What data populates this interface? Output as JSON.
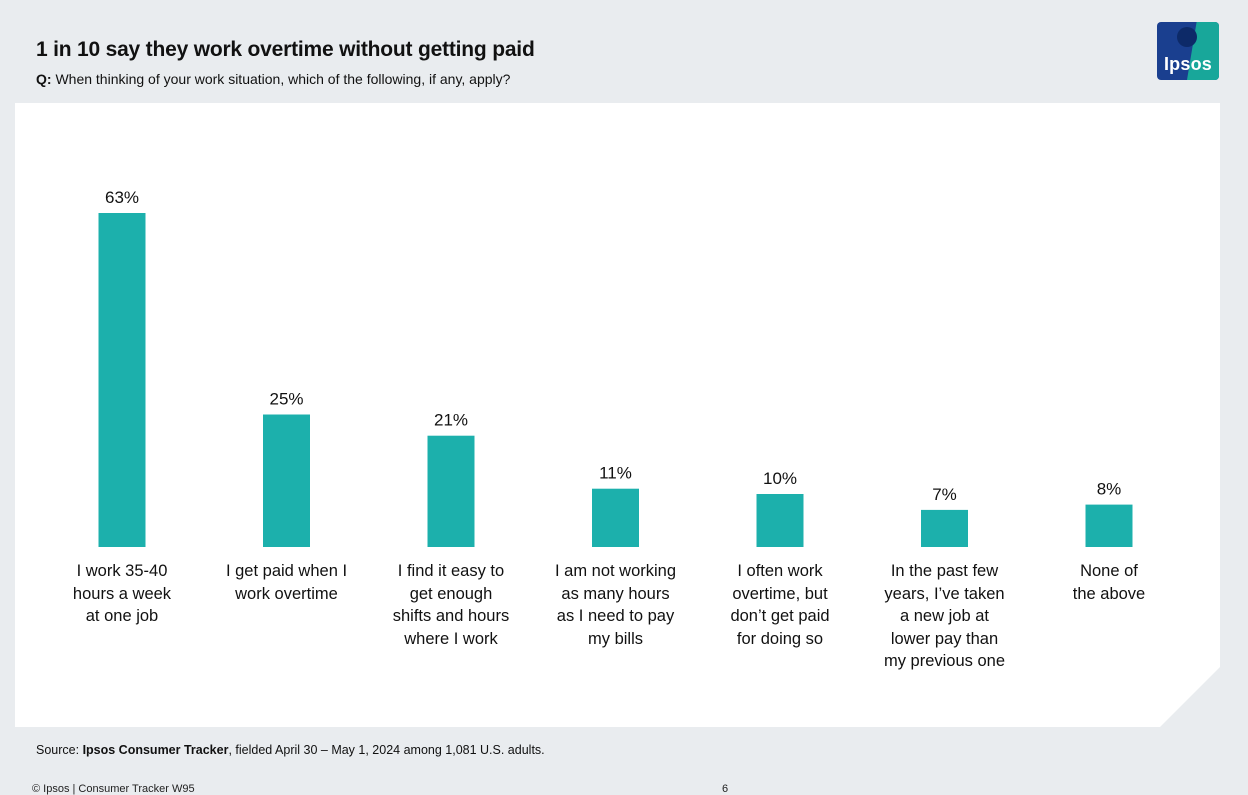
{
  "header": {
    "title": "1 in 10 say they work overtime without getting paid",
    "question_prefix": "Q:",
    "question": "When thinking of your work situation, which of the following, if any, apply?"
  },
  "logo": {
    "text": "Ipsos"
  },
  "colors": {
    "bar": "#1cb0ac",
    "background": "#e9ecef",
    "panel": "#ffffff"
  },
  "chart_data": {
    "type": "bar",
    "title": "1 in 10 say they work overtime without getting paid",
    "xlabel": "",
    "ylabel": "",
    "ylim": [
      0,
      63
    ],
    "grid": false,
    "categories": [
      "I work 35-40 hours a week at one job",
      "I get paid when I work overtime",
      "I find it easy to get enough shifts and hours where I work",
      "I am not working as many hours as I need to pay my bills",
      "I often work overtime, but don’t get paid for doing so",
      "In the past few years, I’ve taken a new job at lower pay than my previous one",
      "None of the above"
    ],
    "category_label_lines": [
      "I work 35-40\nhours a week\nat one job",
      "I get paid when I\nwork overtime",
      "I find it easy to\nget enough\nshifts and hours\nwhere I work",
      "I am not working\nas many hours\nas I need to pay\nmy bills",
      "I often work\novertime, but\ndon’t get paid\nfor doing so",
      "In the past few\nyears, I’ve taken\na new job at\nlower pay than\nmy previous one",
      "None of\nthe above"
    ],
    "values": [
      63,
      25,
      21,
      11,
      10,
      7,
      8
    ],
    "value_labels": [
      "63%",
      "25%",
      "21%",
      "11%",
      "10%",
      "7%",
      "8%"
    ]
  },
  "footer": {
    "source_prefix": "Source: ",
    "source_bold": "Ipsos Consumer Tracker",
    "source_rest": ", fielded April 30 – May 1, 2024 among 1,081 U.S. adults.",
    "copyright": "© Ipsos | Consumer Tracker W95",
    "page_number": "6"
  }
}
